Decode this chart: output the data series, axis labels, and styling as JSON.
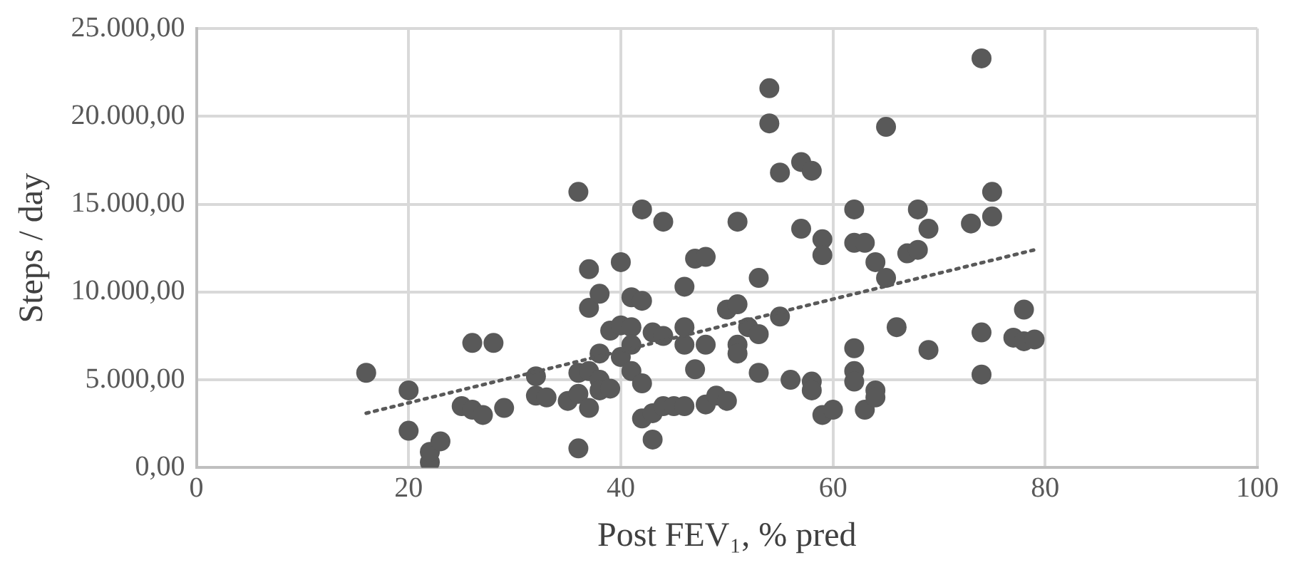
{
  "chart_data": {
    "type": "scatter",
    "xlabel": "Post FEV₁, % pred",
    "ylabel": "Steps / day",
    "xlim": [
      0,
      100
    ],
    "xticks": [
      0,
      20,
      40,
      60,
      80,
      100
    ],
    "ylim": [
      0,
      25000
    ],
    "yticks": [
      {
        "value": 0,
        "label": "0,00"
      },
      {
        "value": 5000,
        "label": "5.000,00"
      },
      {
        "value": 10000,
        "label": "10.000,00"
      },
      {
        "value": 15000,
        "label": "15.000,00"
      },
      {
        "value": 20000,
        "label": "20.000,00"
      },
      {
        "value": 25000,
        "label": "25.000,00"
      }
    ],
    "grid": true,
    "marker": "circle",
    "series": [
      {
        "type": "scatter",
        "color": "#595959",
        "x": [
          16,
          20,
          20,
          22,
          22,
          23,
          25,
          26,
          26,
          27,
          28,
          29,
          32,
          32,
          33,
          35,
          36,
          36,
          36,
          36,
          37,
          37,
          37,
          37,
          38,
          38,
          38,
          38,
          39,
          39,
          40,
          40,
          40,
          41,
          41,
          41,
          41,
          42,
          42,
          42,
          42,
          43,
          43,
          43,
          44,
          44,
          44,
          45,
          46,
          46,
          46,
          46,
          47,
          47,
          48,
          48,
          48,
          49,
          50,
          50,
          51,
          51,
          51,
          51,
          52,
          53,
          53,
          53,
          54,
          54,
          55,
          55,
          56,
          57,
          57,
          58,
          58,
          58,
          59,
          59,
          59,
          60,
          62,
          62,
          62,
          62,
          62,
          63,
          63,
          64,
          64,
          64,
          65,
          65,
          66,
          67,
          68,
          68,
          69,
          69,
          73,
          74,
          74,
          74,
          75,
          75,
          77,
          78,
          78,
          79
        ],
        "values": [
          5400,
          4400,
          2100,
          300,
          900,
          1500,
          3500,
          3300,
          7100,
          3000,
          7100,
          3400,
          5200,
          4100,
          4000,
          3800,
          15700,
          1100,
          5400,
          4200,
          3400,
          11300,
          9100,
          5500,
          9900,
          6500,
          5000,
          4400,
          7800,
          4500,
          11700,
          8100,
          6300,
          9700,
          8000,
          7000,
          5500,
          14700,
          9500,
          4800,
          2800,
          7700,
          3100,
          1600,
          14000,
          7500,
          3500,
          3500,
          10300,
          8000,
          7000,
          3500,
          11900,
          5600,
          12000,
          7000,
          3600,
          4100,
          9000,
          3800,
          14000,
          9300,
          7000,
          6500,
          8000,
          10800,
          7600,
          5400,
          21600,
          19600,
          16800,
          8600,
          5000,
          17400,
          13600,
          16900,
          4900,
          4400,
          13000,
          12100,
          3000,
          3300,
          14700,
          12800,
          6800,
          5500,
          4900,
          12800,
          3300,
          11700,
          4400,
          4000,
          19400,
          10800,
          8000,
          12200,
          14700,
          12400,
          13600,
          6700,
          13900,
          23300,
          7700,
          5300,
          15700,
          14300,
          7400,
          9000,
          7200,
          7300
        ]
      },
      {
        "type": "line",
        "color": "#595959",
        "line_style": "dotted",
        "marker": "none",
        "x": [
          16,
          79
        ],
        "values": [
          3100,
          12400
        ]
      }
    ]
  }
}
